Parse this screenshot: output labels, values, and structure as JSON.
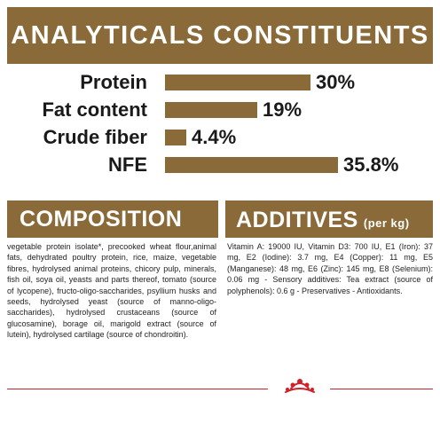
{
  "analytics": {
    "title": "ANALYTICALS CONSTITUENTS",
    "items": [
      {
        "label": "Protein",
        "value_text": "30%",
        "value": 30.0
      },
      {
        "label": "Fat content",
        "value_text": "19%",
        "value": 19.0
      },
      {
        "label": "Crude fiber",
        "value_text": "4.4%",
        "value": 4.4
      },
      {
        "label": "NFE",
        "value_text": "35.8%",
        "value": 35.8
      }
    ]
  },
  "composition": {
    "title": "COMPOSITION",
    "text": "vegetable protein isolate*, precooked wheat flour,animal fats, dehydrated poultry protein, rice, maize, vegetable fibres, hydrolysed animal proteins, chicory pulp, minerals, fish oil, soya oil, yeasts and parts thereof, tomato (source of lycopene), fructo-oligo-saccharides, psyllium husks and seeds, hydrolysed yeast (source of manno-oligo-saccharides), hydrolysed crustaceans (source of glucosamine), borage oil, marigold extract (source of lutein), hydrolysed cartilage (source of chondroitin)."
  },
  "additives": {
    "title": "ADDITIVES",
    "subtitle": "(per kg)",
    "text": "Vitamin A: 19000 IU, Vitamin D3: 700 IU, E1 (Iron): 37 mg, E2 (Iodine): 3.7 mg, E4 (Copper): 11 mg, E5 (Manganese): 48 mg, E6 (Zinc): 145 mg, E8 (Selenium): 0.06 mg - Sensory additives: Tea extract (source of polyphenols): 0.6 g - Preservatives - Antioxidants."
  },
  "brand": {
    "logo": "crown-logo",
    "accent": "#d0202a",
    "band_color": "#8a6a38"
  }
}
